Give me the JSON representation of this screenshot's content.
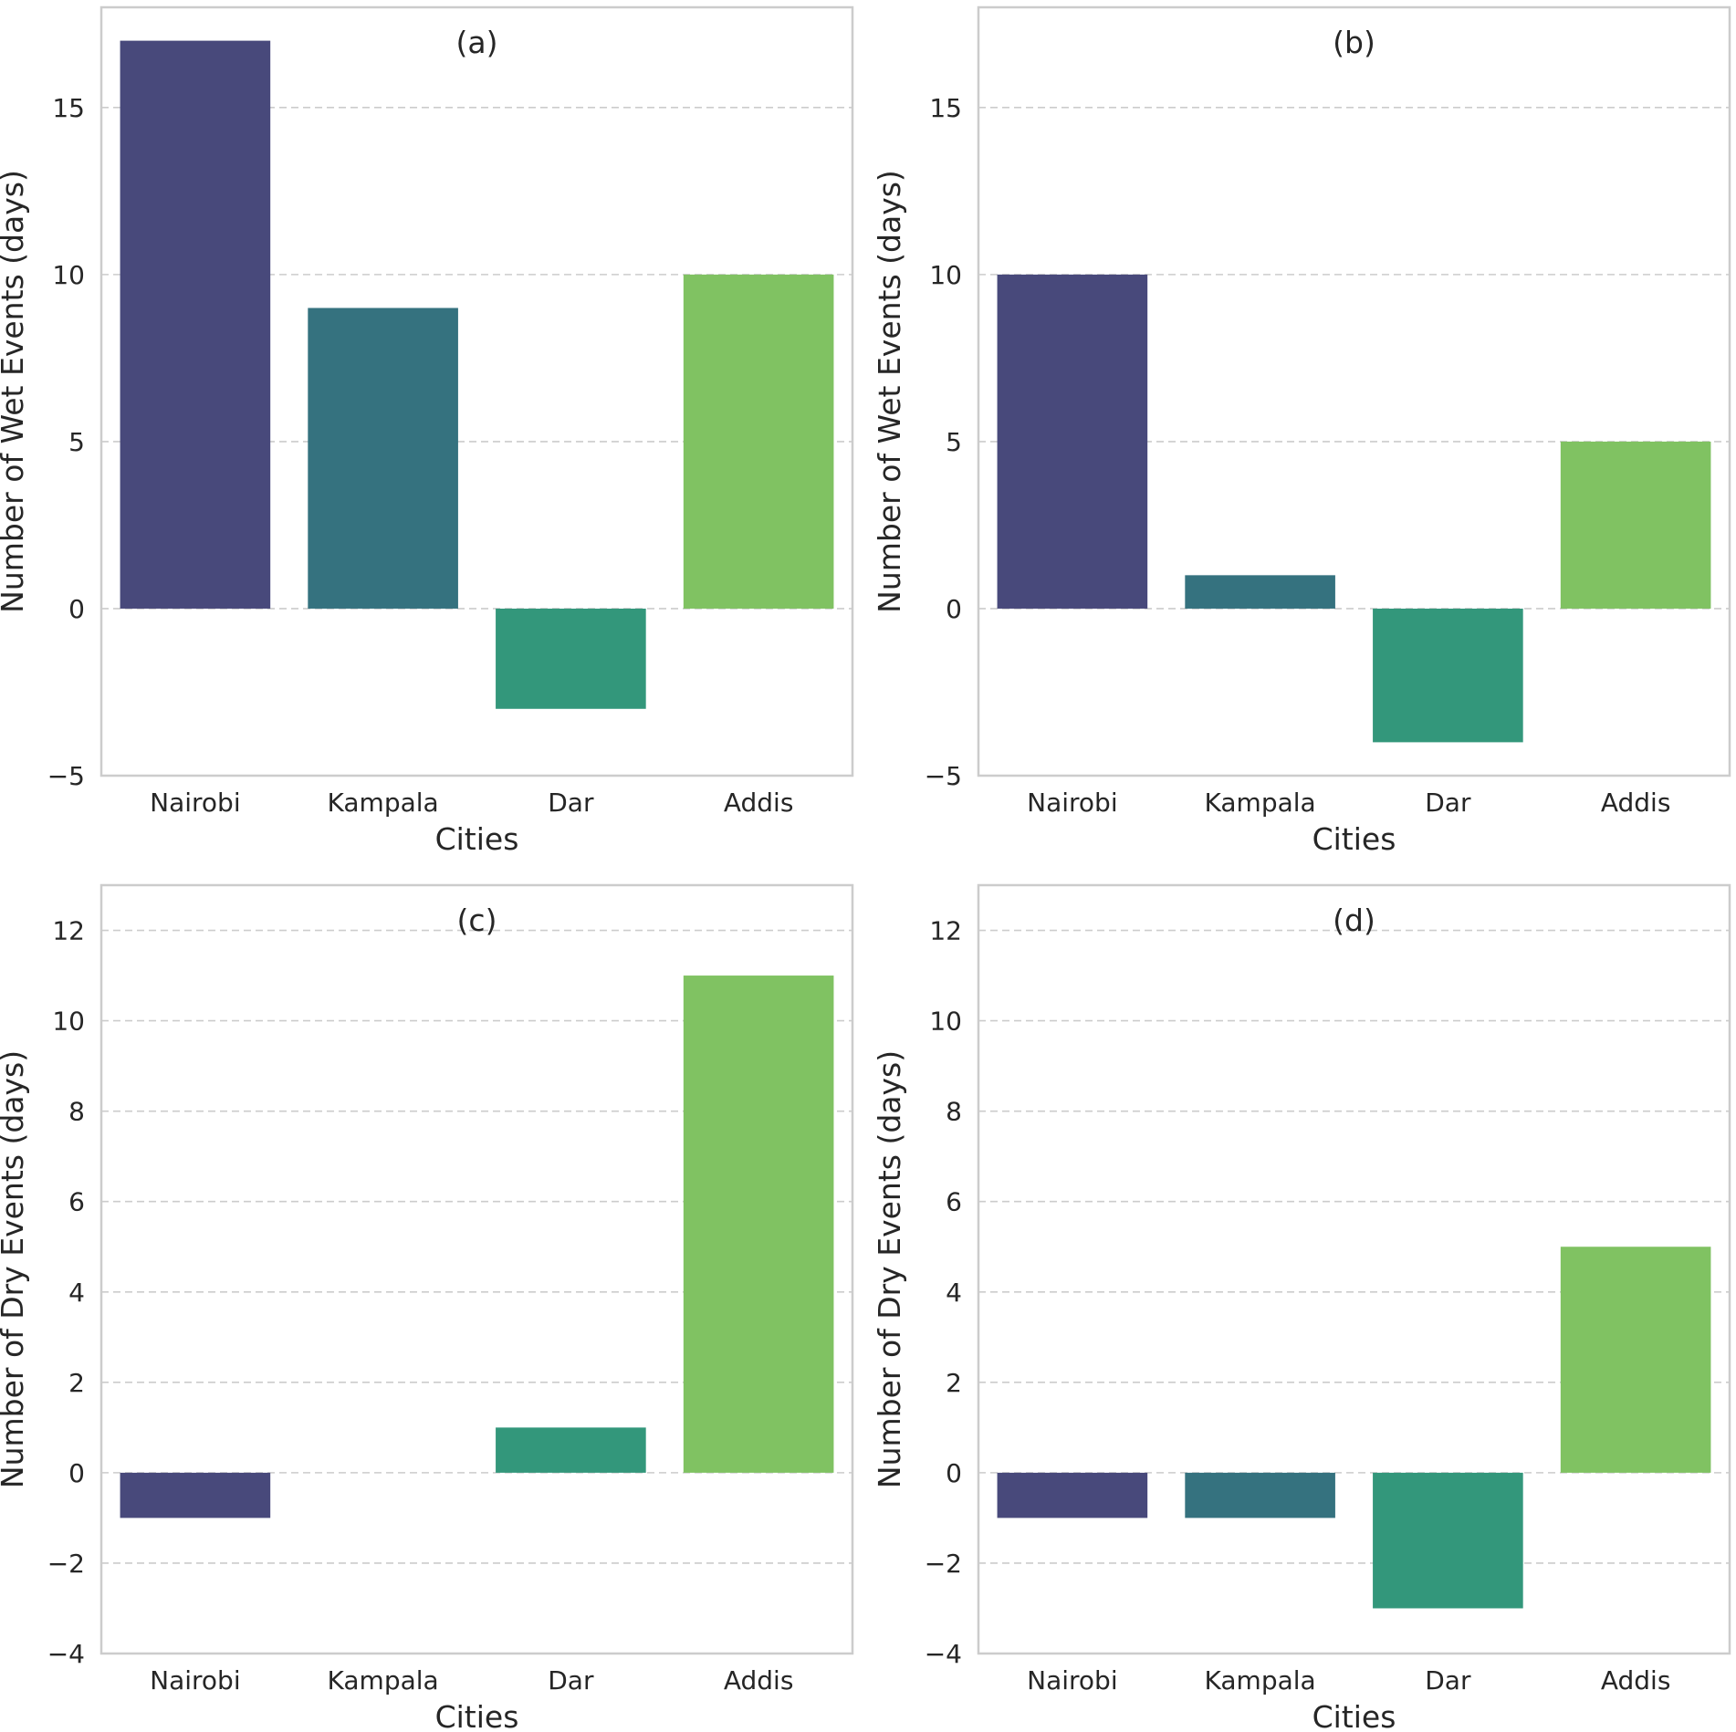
{
  "chart_data": [
    {
      "type": "bar",
      "title": "(a)",
      "xlabel": "Cities",
      "ylabel": "Number of Wet Events (days)",
      "categories": [
        "Nairobi",
        "Kampala",
        "Dar",
        "Addis"
      ],
      "values": [
        17,
        9,
        -3,
        10
      ],
      "ylim": [
        -5,
        18
      ],
      "yticks": [
        -5,
        0,
        5,
        10,
        15
      ],
      "ytick_labels": [
        "−5",
        "0",
        "5",
        "10",
        "15"
      ],
      "grid": true
    },
    {
      "type": "bar",
      "title": "(b)",
      "xlabel": "Cities",
      "ylabel": "Number of Wet Events (days)",
      "categories": [
        "Nairobi",
        "Kampala",
        "Dar",
        "Addis"
      ],
      "values": [
        10,
        1,
        -4,
        5
      ],
      "ylim": [
        -5,
        18
      ],
      "yticks": [
        -5,
        0,
        5,
        10,
        15
      ],
      "ytick_labels": [
        "−5",
        "0",
        "5",
        "10",
        "15"
      ],
      "grid": true
    },
    {
      "type": "bar",
      "title": "(c)",
      "xlabel": "Cities",
      "ylabel": "Number of Dry Events (days)",
      "categories": [
        "Nairobi",
        "Kampala",
        "Dar",
        "Addis"
      ],
      "values": [
        -1,
        0,
        1,
        11
      ],
      "ylim": [
        -4,
        13
      ],
      "yticks": [
        -4,
        -2,
        0,
        2,
        4,
        6,
        8,
        10,
        12
      ],
      "ytick_labels": [
        "−4",
        "−2",
        "0",
        "2",
        "4",
        "6",
        "8",
        "10",
        "12"
      ],
      "grid": true
    },
    {
      "type": "bar",
      "title": "(d)",
      "xlabel": "Cities",
      "ylabel": "Number of Dry Events (days)",
      "categories": [
        "Nairobi",
        "Kampala",
        "Dar",
        "Addis"
      ],
      "values": [
        -1,
        -1,
        -3,
        5
      ],
      "ylim": [
        -4,
        13
      ],
      "yticks": [
        -4,
        -2,
        0,
        2,
        4,
        6,
        8,
        10,
        12
      ],
      "ytick_labels": [
        "−4",
        "−2",
        "0",
        "2",
        "4",
        "6",
        "8",
        "10",
        "12"
      ],
      "grid": true
    }
  ],
  "colors": {
    "bars": [
      "#48497b",
      "#35727f",
      "#33977b",
      "#80c262"
    ]
  }
}
